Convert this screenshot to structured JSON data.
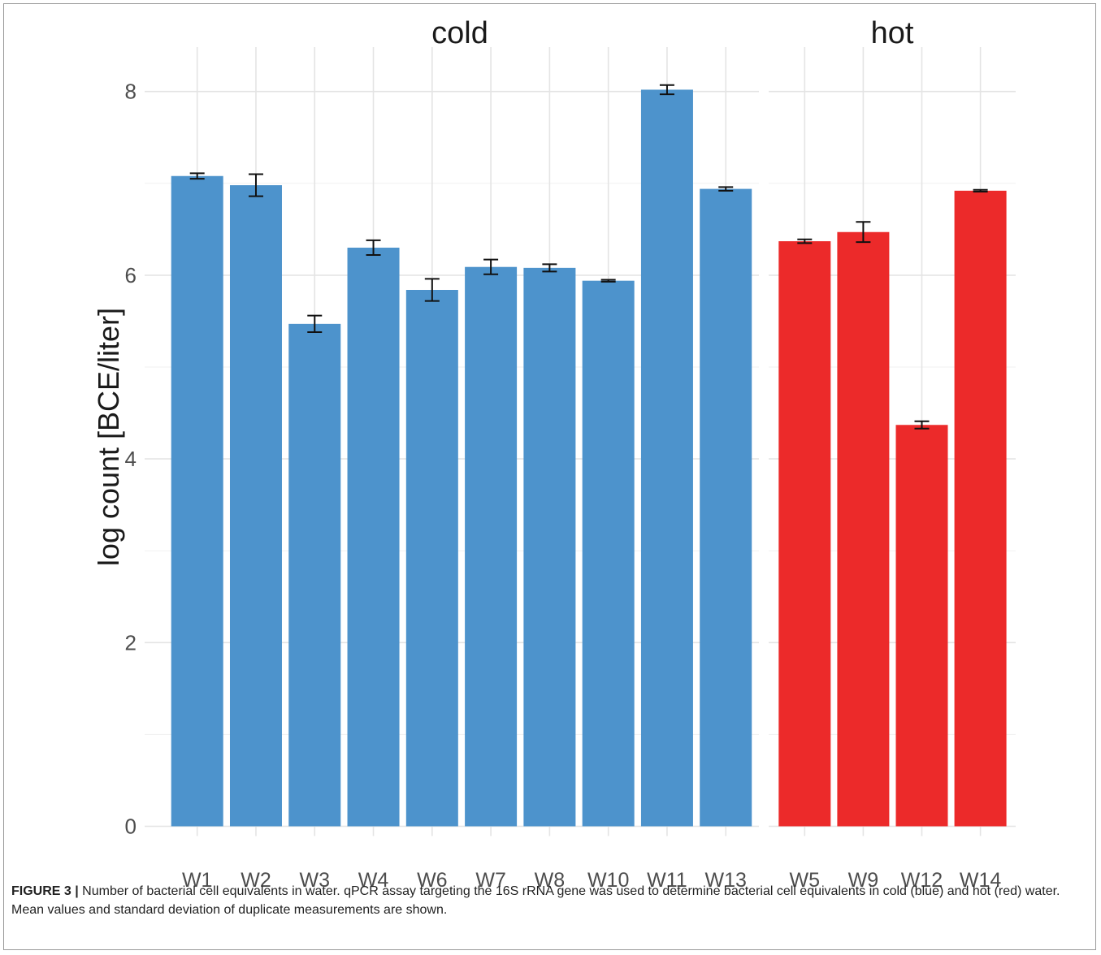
{
  "chart_data": {
    "type": "bar",
    "ylabel": "log count [BCE/liter]",
    "ylim": [
      0,
      8.5
    ],
    "yticks": [
      0,
      2,
      4,
      6,
      8
    ],
    "grid": true,
    "colors": {
      "cold": "#4d93cc",
      "hot": "#ec2a2a"
    },
    "panels": [
      {
        "name": "cold",
        "categories": [
          "W1",
          "W2",
          "W3",
          "W4",
          "W6",
          "W7",
          "W8",
          "W10",
          "W11",
          "W13"
        ],
        "values": [
          7.08,
          6.98,
          5.47,
          6.3,
          5.84,
          6.09,
          6.08,
          5.94,
          8.02,
          6.94
        ],
        "errors": [
          0.03,
          0.12,
          0.09,
          0.08,
          0.12,
          0.08,
          0.04,
          0.01,
          0.05,
          0.02
        ]
      },
      {
        "name": "hot",
        "categories": [
          "W5",
          "W9",
          "W12",
          "W14"
        ],
        "values": [
          6.37,
          6.47,
          4.37,
          6.92
        ],
        "errors": [
          0.02,
          0.11,
          0.04,
          0.01
        ]
      }
    ]
  },
  "caption": {
    "label": "FIGURE 3 |",
    "text": "Number of bacterial cell equivalents in water. qPCR assay targeting the 16S rRNA gene was used to determine bacterial cell equivalents in cold (blue) and hot (red) water. Mean values and standard deviation of duplicate measurements are shown."
  }
}
